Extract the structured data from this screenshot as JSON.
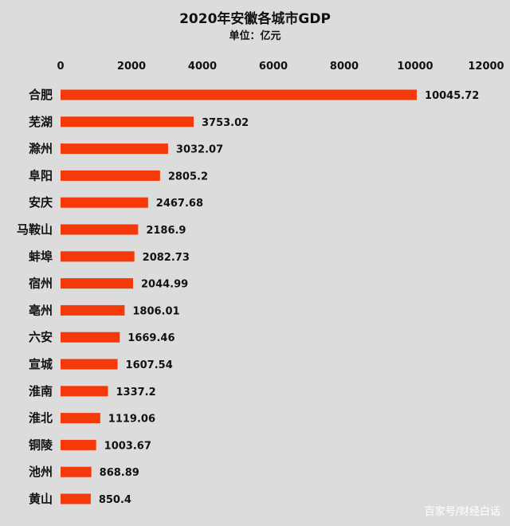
{
  "chart_data": {
    "type": "bar",
    "orientation": "horizontal",
    "title": "2020年安徽各城市GDP",
    "subtitle": "单位：亿元",
    "xlim": [
      0,
      12000
    ],
    "xticks": [
      0,
      2000,
      4000,
      6000,
      8000,
      10000,
      12000
    ],
    "x_axis_position": "top",
    "grid": false,
    "bar_color": "#f4390a",
    "categories": [
      "合肥",
      "芜湖",
      "滁州",
      "阜阳",
      "安庆",
      "马鞍山",
      "蚌埠",
      "宿州",
      "亳州",
      "六安",
      "宣城",
      "淮南",
      "淮北",
      "铜陵",
      "池州",
      "黄山"
    ],
    "values": [
      10045.72,
      3753.02,
      3032.07,
      2805.2,
      2467.68,
      2186.9,
      2082.73,
      2044.99,
      1806.01,
      1669.46,
      1607.54,
      1337.2,
      1119.06,
      1003.67,
      868.89,
      850.4
    ],
    "value_labels": [
      "10045.72",
      "3753.02",
      "3032.07",
      "2805.2",
      "2467.68",
      "2186.9",
      "2082.73",
      "2044.99",
      "1806.01",
      "1669.46",
      "1607.54",
      "1337.2",
      "1119.06",
      "1003.67",
      "868.89",
      "850.4"
    ]
  },
  "watermark": "百家号/财经白话"
}
